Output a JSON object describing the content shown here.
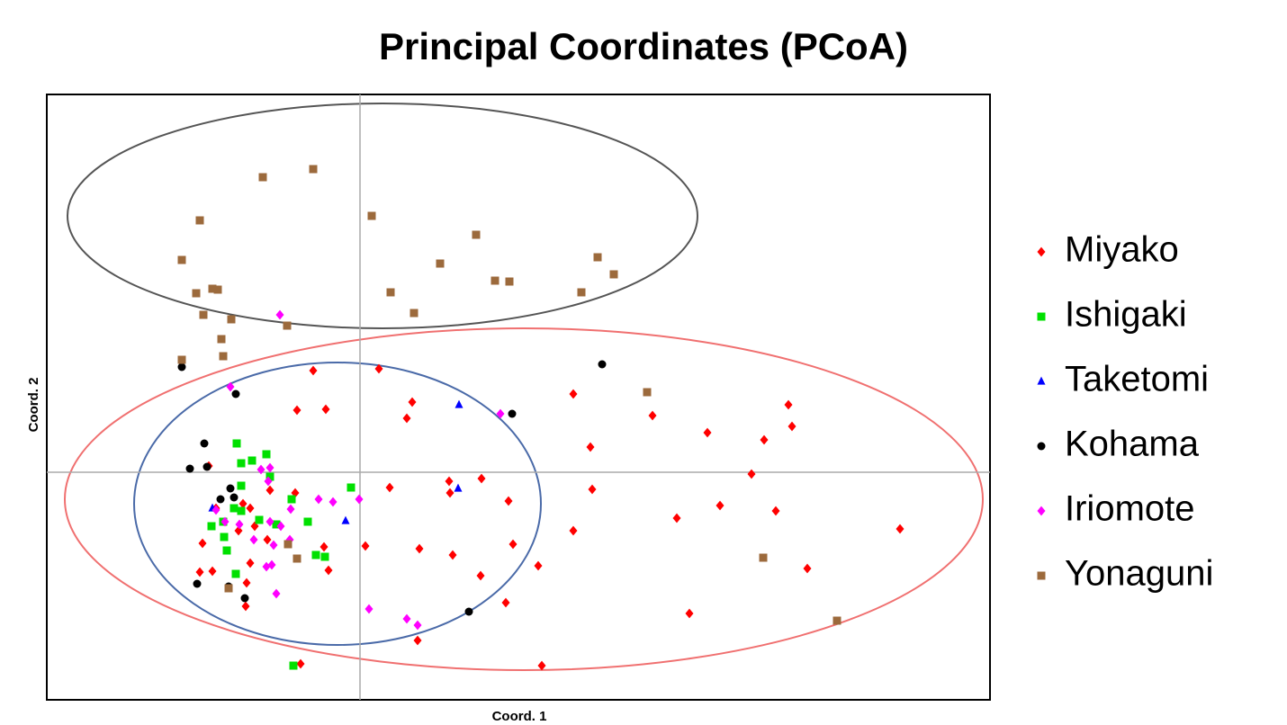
{
  "chart_data": {
    "type": "scatter",
    "title": "Principal Coordinates (PCoA)",
    "x_label": "Coord. 1",
    "y_label": "Coord. 2",
    "xlim": [
      -3.48,
      7.0
    ],
    "ylim": [
      -2.53,
      4.2
    ],
    "zero_lines": true,
    "legend": "right",
    "series": [
      {
        "name": "Miyako",
        "color": "#ff0000",
        "marker": "diamond",
        "x": [
          -0.52,
          0.21,
          0.58,
          -0.7,
          -0.38,
          0.52,
          2.37,
          3.25,
          4.76,
          4.8,
          3.86,
          4.49,
          2.56,
          4.35,
          1.35,
          0.99,
          0.33,
          1.0,
          2.58,
          1.65,
          4.0,
          3.52,
          4.62,
          2.37,
          6.0,
          1.7,
          0.06,
          0.66,
          1.03,
          1.98,
          1.34,
          4.97,
          1.62,
          3.66,
          0.64,
          2.02,
          -0.66,
          -1.75,
          -1.78,
          -1.64,
          -1.26,
          -1.27,
          -1.22,
          -1.3,
          -1.17,
          -1.0,
          -1.03,
          -0.72,
          -1.22,
          -0.35,
          -0.4,
          -1.6,
          -1.35,
          -1.68
        ],
        "y": [
          1.13,
          1.15,
          0.78,
          0.69,
          0.7,
          0.6,
          0.87,
          0.63,
          0.75,
          0.51,
          0.44,
          0.36,
          0.28,
          -0.02,
          -0.07,
          -0.1,
          -0.17,
          -0.23,
          -0.19,
          -0.32,
          -0.37,
          -0.51,
          -0.43,
          -0.65,
          -0.63,
          -0.8,
          -0.82,
          -0.85,
          -0.92,
          -1.04,
          -1.15,
          -1.07,
          -1.45,
          -1.57,
          -1.87,
          -2.15,
          -2.13,
          -0.79,
          -1.11,
          -1.1,
          -1.23,
          -1.49,
          -0.4,
          -0.35,
          -0.6,
          -0.2,
          -0.75,
          -0.23,
          -1.01,
          -1.09,
          -0.83,
          -0.4,
          -0.65,
          0.07
        ]
      },
      {
        "name": "Ishigaki",
        "color": "#00e000",
        "marker": "square",
        "x": [
          -1.37,
          -1.32,
          -1.2,
          -1.04,
          -1.32,
          -1.4,
          -1.65,
          -1.51,
          -1.48,
          -1.38,
          -1.12,
          -0.93,
          -0.76,
          -0.58,
          -0.49,
          -0.39,
          -0.1,
          -0.74,
          -1.0,
          -1.52,
          -1.32
        ],
        "y": [
          0.32,
          0.1,
          0.13,
          0.2,
          -0.15,
          -0.4,
          -0.6,
          -0.72,
          -0.87,
          -1.13,
          -0.53,
          -0.58,
          -0.3,
          -0.55,
          -0.92,
          -0.94,
          -0.17,
          -2.15,
          -0.05,
          -0.55,
          -0.43
        ]
      },
      {
        "name": "Taketomi",
        "color": "#0000ff",
        "marker": "triangle",
        "x": [
          1.1,
          1.09,
          -0.16,
          -1.64
        ],
        "y": [
          0.75,
          -0.18,
          -0.54,
          -0.4
        ]
      },
      {
        "name": "Kohama",
        "color": "#000000",
        "marker": "circle",
        "x": [
          -1.98,
          -1.38,
          2.69,
          1.69,
          -1.73,
          -1.89,
          -1.7,
          -1.44,
          -1.55,
          -1.4,
          -1.81,
          -1.28,
          1.21,
          -1.46
        ],
        "y": [
          1.17,
          0.87,
          1.2,
          0.65,
          0.32,
          0.04,
          0.06,
          -0.18,
          -0.3,
          -0.28,
          -1.24,
          -1.4,
          -1.55,
          -1.27
        ]
      },
      {
        "name": "Iriomote",
        "color": "#ff00ff",
        "marker": "diamond",
        "x": [
          -0.89,
          -1.44,
          1.56,
          -1.1,
          -1.0,
          -1.02,
          -0.46,
          -0.3,
          -0.01,
          -0.77,
          -1.6,
          -1.5,
          -1.34,
          -1.0,
          -0.88,
          -1.18,
          -0.96,
          -1.04,
          -0.98,
          -0.93,
          0.1,
          0.52,
          0.64,
          -0.78
        ],
        "y": [
          1.75,
          0.95,
          0.65,
          0.03,
          0.05,
          -0.1,
          -0.3,
          -0.33,
          -0.3,
          -0.41,
          -0.42,
          -0.55,
          -0.58,
          -0.55,
          -0.6,
          -0.75,
          -0.81,
          -1.05,
          -1.03,
          -1.35,
          -1.52,
          -1.63,
          -1.7,
          -0.75
        ]
      },
      {
        "name": "Yonaguni",
        "color": "#9c6a3c",
        "marker": "square",
        "x": [
          -1.08,
          -0.52,
          -1.78,
          0.13,
          1.29,
          -1.98,
          0.89,
          2.64,
          2.82,
          -1.82,
          -1.64,
          -1.58,
          0.34,
          1.5,
          1.66,
          2.46,
          -1.74,
          -1.43,
          0.6,
          -0.81,
          -1.54,
          -1.52,
          -1.98,
          3.19,
          -0.8,
          4.48,
          5.3,
          -0.7,
          -1.46
        ],
        "y": [
          3.28,
          3.37,
          2.8,
          2.85,
          2.64,
          2.36,
          2.32,
          2.39,
          2.2,
          1.99,
          2.04,
          2.03,
          2.0,
          2.13,
          2.12,
          2.0,
          1.75,
          1.7,
          1.77,
          1.63,
          1.48,
          1.29,
          1.25,
          0.89,
          -0.8,
          -0.95,
          -1.65,
          -0.96,
          -1.29
        ]
      }
    ]
  }
}
